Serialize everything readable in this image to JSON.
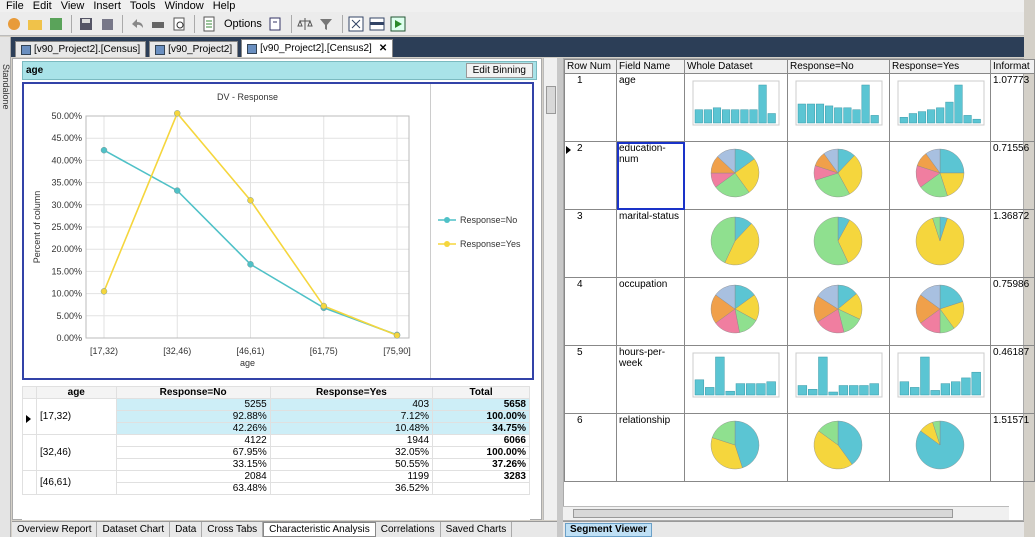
{
  "menu": [
    "File",
    "Edit",
    "View",
    "Insert",
    "Tools",
    "Window",
    "Help"
  ],
  "toolbar": {
    "options_label": "Options"
  },
  "sidebar": {
    "label": "Standalone"
  },
  "tabs": [
    {
      "label": "[v90_Project2].[Census]"
    },
    {
      "label": "[v90_Project2]"
    },
    {
      "label": "[v90_Project2].[Census2]",
      "close": "✕"
    }
  ],
  "panel": {
    "title": "age",
    "edit_binning": "Edit Binning"
  },
  "chart_data": {
    "type": "line",
    "title": "DV - Response",
    "xlabel": "age",
    "ylabel": "Percent of column",
    "categories": [
      "[17,32)",
      "[32,46)",
      "[46,61)",
      "[61,75)",
      "[75,90]"
    ],
    "yticks": [
      "0.00%",
      "5.00%",
      "10.00%",
      "15.00%",
      "20.00%",
      "25.00%",
      "30.00%",
      "35.00%",
      "40.00%",
      "45.00%",
      "50.00%"
    ],
    "ylim": [
      0,
      50
    ],
    "series": [
      {
        "name": "Response=No",
        "color": "#4fc1c7",
        "values": [
          42.3,
          33.2,
          16.6,
          6.8,
          0.7
        ]
      },
      {
        "name": "Response=Yes",
        "color": "#f5d63d",
        "values": [
          10.5,
          50.6,
          31.0,
          7.2,
          0.6
        ]
      }
    ],
    "legend": "right"
  },
  "crosstab": {
    "headers": [
      "age",
      "Response=No",
      "Response=Yes",
      "Total"
    ],
    "rows": [
      {
        "label": "[17,32)",
        "vals": [
          [
            "5255",
            "403",
            "5658"
          ],
          [
            "92.88%",
            "7.12%",
            "100.00%"
          ],
          [
            "42.26%",
            "10.48%",
            "34.75%"
          ]
        ]
      },
      {
        "label": "[32,46)",
        "vals": [
          [
            "4122",
            "1944",
            "6066"
          ],
          [
            "67.95%",
            "32.05%",
            "100.00%"
          ],
          [
            "33.15%",
            "50.55%",
            "37.26%"
          ]
        ]
      },
      {
        "label": "[46,61)",
        "vals": [
          [
            "2084",
            "1199",
            "3283"
          ],
          [
            "63.48%",
            "36.52%",
            ""
          ]
        ]
      }
    ]
  },
  "bottom_tabs": [
    "Overview Report",
    "Dataset Chart",
    "Data",
    "Cross Tabs",
    "Characteristic Analysis",
    "Correlations",
    "Saved Charts"
  ],
  "grid": {
    "headers": [
      "Row Num",
      "Field Name",
      "Whole Dataset",
      "Response=No",
      "Response=Yes",
      "Informat"
    ],
    "rows": [
      {
        "num": "1",
        "field": "age",
        "kind": "bar",
        "info": "1.07773"
      },
      {
        "num": "2",
        "field": "education-num",
        "kind": "pie",
        "info": "0.71556"
      },
      {
        "num": "3",
        "field": "marital-status",
        "kind": "pie",
        "info": "1.36872"
      },
      {
        "num": "4",
        "field": "occupation",
        "kind": "pie",
        "info": "0.75986"
      },
      {
        "num": "5",
        "field": "hours-per-week",
        "kind": "bar",
        "info": "0.46187"
      },
      {
        "num": "6",
        "field": "relationship",
        "kind": "pie",
        "info": "1.51571"
      }
    ]
  },
  "segment_viewer": "Segment Viewer"
}
